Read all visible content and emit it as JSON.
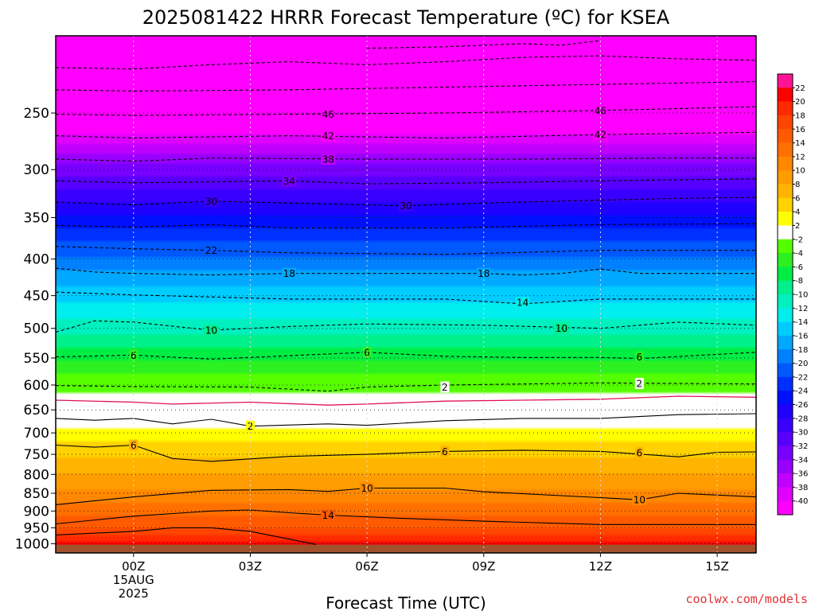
{
  "chart_data": {
    "type": "heatmap",
    "title": "2025081422 HRRR Forecast Temperature (ºC) for KSEA",
    "xlabel": "Forecast Time (UTC)",
    "ylabel": "",
    "credit": "coolwx.com/models",
    "x_ticks": [
      {
        "hour": 0,
        "lines": [
          "00Z",
          "15AUG",
          "2025"
        ]
      },
      {
        "hour": 3,
        "lines": [
          "03Z"
        ]
      },
      {
        "hour": 6,
        "lines": [
          "06Z"
        ]
      },
      {
        "hour": 9,
        "lines": [
          "09Z"
        ]
      },
      {
        "hour": 12,
        "lines": [
          "12Z"
        ]
      },
      {
        "hour": 15,
        "lines": [
          "15Z"
        ]
      }
    ],
    "xlim": [
      -2,
      16
    ],
    "y_ticks": [
      250,
      300,
      350,
      400,
      450,
      500,
      550,
      600,
      650,
      700,
      750,
      800,
      850,
      900,
      950,
      1000
    ],
    "ylim": [
      1030,
      195
    ],
    "y_scale": "log-pressure (hPa)",
    "ground_level_hpa": 1003,
    "colorbar": {
      "labels": [
        "22",
        "20",
        "18",
        "16",
        "14",
        "12",
        "10",
        "8",
        "6",
        "4",
        "2",
        "-2",
        "-4",
        "-6",
        "-8",
        "-10",
        "-12",
        "-14",
        "-16",
        "-18",
        "-20",
        "-22",
        "-24",
        "-26",
        "-28",
        "-30",
        "-32",
        "-34",
        "-36",
        "-38",
        "-40"
      ],
      "colors": [
        "#ff1493",
        "#ff0000",
        "#ff2a00",
        "#ff4500",
        "#ff5a00",
        "#ff7000",
        "#ff8800",
        "#ff9c00",
        "#ffb400",
        "#ffd200",
        "#ffff00",
        "#ffffff",
        "#55ff00",
        "#2cf020",
        "#00ee44",
        "#00f08c",
        "#00f0c0",
        "#00eeee",
        "#00ccff",
        "#00a8ff",
        "#0080ff",
        "#0058ff",
        "#0030ff",
        "#0010ff",
        "#2000ff",
        "#3a00ff",
        "#5800ff",
        "#7800ff",
        "#9800ff",
        "#c000ff",
        "#e000ff",
        "#ff00ff"
      ]
    },
    "temperature_profile_00z": [
      {
        "p": 1000,
        "t": 21.0
      },
      {
        "p": 950,
        "t": 16.0
      },
      {
        "p": 900,
        "t": 13.5
      },
      {
        "p": 850,
        "t": 10.5
      },
      {
        "p": 800,
        "t": 8.0
      },
      {
        "p": 750,
        "t": 5.5
      },
      {
        "p": 700,
        "t": 3.0
      },
      {
        "p": 650,
        "t": -1.0
      },
      {
        "p": 600,
        "t": -2.5
      },
      {
        "p": 550,
        "t": -6.5
      },
      {
        "p": 500,
        "t": -11.0
      },
      {
        "p": 450,
        "t": -15.0
      },
      {
        "p": 400,
        "t": -19.5
      },
      {
        "p": 350,
        "t": -25.5
      },
      {
        "p": 300,
        "t": -33.0
      },
      {
        "p": 250,
        "t": -44.0
      },
      {
        "p": 200,
        "t": -54.0
      }
    ],
    "isotherms": [
      {
        "t": 18,
        "style": "solid",
        "points": [
          [
            -2,
            972
          ],
          [
            0,
            961
          ],
          [
            1,
            950
          ],
          [
            2,
            950
          ],
          [
            3,
            961
          ],
          [
            4,
            985
          ],
          [
            4.7,
            1003
          ]
        ]
      },
      {
        "t": 14,
        "style": "solid",
        "points": [
          [
            -2,
            938
          ],
          [
            0,
            915
          ],
          [
            2,
            900
          ],
          [
            3,
            897
          ],
          [
            4,
            905
          ],
          [
            5,
            912
          ],
          [
            7,
            922
          ],
          [
            9,
            930
          ],
          [
            12,
            940
          ],
          [
            16,
            940
          ]
        ],
        "labels": [
          [
            5,
            912
          ]
        ]
      },
      {
        "t": 10,
        "style": "solid",
        "points": [
          [
            -2,
            882
          ],
          [
            0,
            860
          ],
          [
            2,
            842
          ],
          [
            4,
            840
          ],
          [
            5,
            845
          ],
          [
            6,
            836
          ],
          [
            7,
            836
          ],
          [
            8,
            836
          ],
          [
            9,
            846
          ],
          [
            12,
            862
          ],
          [
            13,
            868
          ],
          [
            14,
            850
          ],
          [
            16,
            860
          ]
        ],
        "labels": [
          [
            6,
            836
          ],
          [
            13,
            868
          ]
        ]
      },
      {
        "t": 6,
        "style": "solid",
        "points": [
          [
            -2,
            728
          ],
          [
            -1,
            733
          ],
          [
            0,
            728
          ],
          [
            1,
            760
          ],
          [
            2,
            767
          ],
          [
            4,
            755
          ],
          [
            6,
            750
          ],
          [
            8,
            743
          ],
          [
            10,
            740
          ],
          [
            12,
            743
          ],
          [
            14,
            756
          ],
          [
            15,
            745
          ],
          [
            16,
            744
          ]
        ],
        "labels": [
          [
            0,
            728
          ],
          [
            8,
            743
          ],
          [
            13,
            746
          ]
        ]
      },
      {
        "t": 2,
        "style": "solid",
        "points": [
          [
            -2,
            668
          ],
          [
            -1,
            672
          ],
          [
            0,
            668
          ],
          [
            1,
            680
          ],
          [
            2,
            670
          ],
          [
            3,
            685
          ],
          [
            5,
            680
          ],
          [
            6,
            683
          ],
          [
            8,
            673
          ],
          [
            10,
            668
          ],
          [
            12,
            668
          ],
          [
            14,
            660
          ],
          [
            16,
            658
          ]
        ],
        "labels": [
          [
            3,
            685
          ]
        ]
      },
      {
        "t": 0,
        "style": "solid",
        "color": "#e0105a",
        "points": [
          [
            -2,
            630
          ],
          [
            0,
            634
          ],
          [
            1,
            638
          ],
          [
            3,
            634
          ],
          [
            5,
            640
          ],
          [
            6,
            638
          ],
          [
            8,
            632
          ],
          [
            10,
            630
          ],
          [
            12,
            628
          ],
          [
            14,
            622
          ],
          [
            16,
            624
          ]
        ]
      },
      {
        "t": -2,
        "style": "dashed",
        "points": [
          [
            -2,
            601
          ],
          [
            0,
            603
          ],
          [
            3,
            604
          ],
          [
            4,
            608
          ],
          [
            5,
            612
          ],
          [
            6,
            604
          ],
          [
            8,
            600
          ],
          [
            12,
            596
          ],
          [
            16,
            598
          ]
        ],
        "labels": [
          [
            8,
            604
          ],
          [
            13,
            597
          ]
        ]
      },
      {
        "t": -6,
        "style": "dashed",
        "points": [
          [
            -2,
            548
          ],
          [
            0,
            545
          ],
          [
            2,
            552
          ],
          [
            4,
            546
          ],
          [
            6,
            540
          ],
          [
            8,
            547
          ],
          [
            10,
            549
          ],
          [
            12,
            549
          ],
          [
            13,
            551
          ],
          [
            16,
            540
          ]
        ],
        "labels": [
          [
            0,
            545
          ],
          [
            6,
            540
          ],
          [
            13,
            548
          ]
        ]
      },
      {
        "t": -10,
        "style": "dashed",
        "points": [
          [
            -2,
            506
          ],
          [
            -1,
            488
          ],
          [
            0,
            490
          ],
          [
            2,
            503
          ],
          [
            4,
            497
          ],
          [
            6,
            493
          ],
          [
            9,
            495
          ],
          [
            12,
            500
          ],
          [
            14,
            490
          ],
          [
            16,
            495
          ]
        ],
        "labels": [
          [
            2,
            503
          ],
          [
            11,
            500
          ]
        ]
      },
      {
        "t": -14,
        "style": "dashed",
        "points": [
          [
            -2,
            445
          ],
          [
            0,
            449
          ],
          [
            2,
            452
          ],
          [
            4,
            455
          ],
          [
            8,
            455
          ],
          [
            10,
            462
          ],
          [
            12,
            455
          ],
          [
            16,
            455
          ]
        ],
        "labels": [
          [
            10,
            460
          ]
        ]
      },
      {
        "t": -18,
        "style": "dashed",
        "points": [
          [
            -2,
            412
          ],
          [
            -1,
            417
          ],
          [
            0,
            419
          ],
          [
            2,
            421
          ],
          [
            4,
            419
          ],
          [
            7,
            419
          ],
          [
            9,
            419
          ],
          [
            10,
            421
          ],
          [
            11,
            419
          ],
          [
            12,
            413
          ],
          [
            13,
            419
          ],
          [
            16,
            419
          ]
        ],
        "labels": [
          [
            4,
            419
          ],
          [
            9,
            419
          ]
        ]
      },
      {
        "t": -22,
        "style": "dashed",
        "points": [
          [
            -2,
            384
          ],
          [
            0,
            387
          ],
          [
            2,
            389
          ],
          [
            4,
            392
          ],
          [
            8,
            394
          ],
          [
            12,
            389
          ],
          [
            16,
            389
          ]
        ],
        "labels": [
          [
            2,
            389
          ]
        ]
      },
      {
        "t": -26,
        "style": "dashed",
        "points": [
          [
            -2,
            359
          ],
          [
            0,
            361
          ],
          [
            2,
            358
          ],
          [
            4,
            362
          ],
          [
            6,
            362
          ],
          [
            8,
            362
          ],
          [
            12,
            358
          ],
          [
            16,
            357
          ]
        ]
      },
      {
        "t": -30,
        "style": "dashed",
        "points": [
          [
            -2,
            333
          ],
          [
            0,
            336
          ],
          [
            2,
            332
          ],
          [
            4,
            334
          ],
          [
            7,
            337
          ],
          [
            9,
            334
          ],
          [
            12,
            331
          ],
          [
            14,
            329
          ],
          [
            16,
            328
          ]
        ],
        "labels": [
          [
            2,
            332
          ],
          [
            7,
            337
          ]
        ]
      },
      {
        "t": -34,
        "style": "dashed",
        "points": [
          [
            -2,
            311
          ],
          [
            0,
            313
          ],
          [
            2,
            312
          ],
          [
            4,
            311
          ],
          [
            6,
            314
          ],
          [
            9,
            313
          ],
          [
            12,
            311
          ],
          [
            16,
            309
          ]
        ],
        "labels": [
          [
            4,
            311
          ]
        ]
      },
      {
        "t": -38,
        "style": "dashed",
        "points": [
          [
            -2,
            290
          ],
          [
            0,
            292
          ],
          [
            2,
            289
          ],
          [
            6,
            290
          ],
          [
            10,
            290
          ],
          [
            14,
            289
          ],
          [
            16,
            289
          ]
        ],
        "labels": [
          [
            5,
            290
          ]
        ]
      },
      {
        "t": -42,
        "style": "dashed",
        "points": [
          [
            -2,
            269
          ],
          [
            0,
            271
          ],
          [
            4,
            269
          ],
          [
            8,
            271
          ],
          [
            12,
            268
          ],
          [
            16,
            266
          ]
        ],
        "labels": [
          [
            5,
            269
          ],
          [
            12,
            268
          ]
        ]
      },
      {
        "t": -46,
        "style": "dashed",
        "points": [
          [
            -2,
            251
          ],
          [
            0,
            252
          ],
          [
            4,
            251
          ],
          [
            8,
            250
          ],
          [
            12,
            248
          ],
          [
            16,
            245
          ]
        ],
        "labels": [
          [
            5,
            251
          ],
          [
            12,
            248
          ]
        ]
      },
      {
        "t": -50,
        "style": "dashed",
        "points": [
          [
            -2,
            232
          ],
          [
            0,
            233
          ],
          [
            4,
            232
          ],
          [
            8,
            230
          ],
          [
            12,
            228
          ],
          [
            16,
            226
          ]
        ]
      },
      {
        "t": -54,
        "style": "dashed",
        "points": [
          [
            -2,
            216
          ],
          [
            0,
            217
          ],
          [
            2,
            214
          ],
          [
            4,
            212
          ],
          [
            6,
            214
          ],
          [
            8,
            212
          ],
          [
            10,
            209
          ],
          [
            12,
            208
          ],
          [
            14,
            210
          ],
          [
            16,
            211
          ]
        ]
      },
      {
        "t": -58,
        "style": "dashed",
        "points": [
          [
            6,
            203
          ],
          [
            8,
            202
          ],
          [
            10,
            200
          ],
          [
            11,
            201
          ],
          [
            12,
            198
          ]
        ]
      }
    ]
  }
}
